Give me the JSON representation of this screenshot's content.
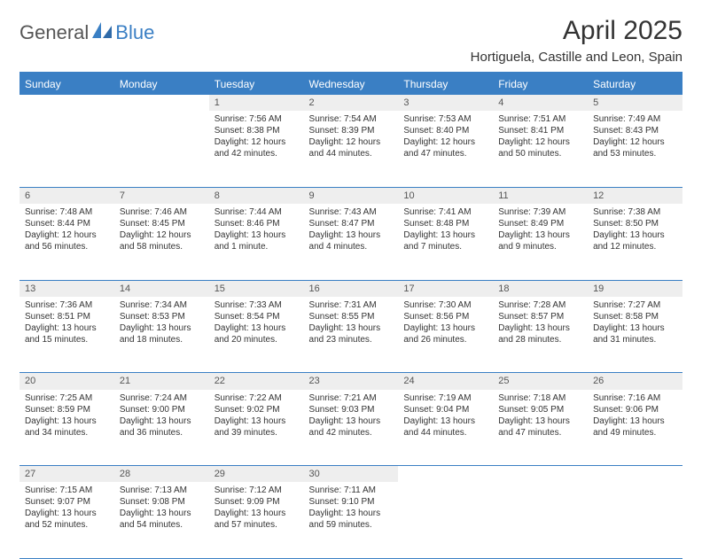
{
  "brand": {
    "part1": "General",
    "part2": "Blue",
    "accent": "#3a7fc4",
    "text_color": "#555"
  },
  "title": "April 2025",
  "location": "Hortiguela, Castille and Leon, Spain",
  "header_bg": "#3a7fc4",
  "header_fg": "#ffffff",
  "daynum_bg": "#eeeeee",
  "border_color": "#3a7fc4",
  "columns": [
    "Sunday",
    "Monday",
    "Tuesday",
    "Wednesday",
    "Thursday",
    "Friday",
    "Saturday"
  ],
  "weeks": [
    [
      null,
      null,
      {
        "n": "1",
        "sr": "7:56 AM",
        "ss": "8:38 PM",
        "dl": "12 hours and 42 minutes."
      },
      {
        "n": "2",
        "sr": "7:54 AM",
        "ss": "8:39 PM",
        "dl": "12 hours and 44 minutes."
      },
      {
        "n": "3",
        "sr": "7:53 AM",
        "ss": "8:40 PM",
        "dl": "12 hours and 47 minutes."
      },
      {
        "n": "4",
        "sr": "7:51 AM",
        "ss": "8:41 PM",
        "dl": "12 hours and 50 minutes."
      },
      {
        "n": "5",
        "sr": "7:49 AM",
        "ss": "8:43 PM",
        "dl": "12 hours and 53 minutes."
      }
    ],
    [
      {
        "n": "6",
        "sr": "7:48 AM",
        "ss": "8:44 PM",
        "dl": "12 hours and 56 minutes."
      },
      {
        "n": "7",
        "sr": "7:46 AM",
        "ss": "8:45 PM",
        "dl": "12 hours and 58 minutes."
      },
      {
        "n": "8",
        "sr": "7:44 AM",
        "ss": "8:46 PM",
        "dl": "13 hours and 1 minute."
      },
      {
        "n": "9",
        "sr": "7:43 AM",
        "ss": "8:47 PM",
        "dl": "13 hours and 4 minutes."
      },
      {
        "n": "10",
        "sr": "7:41 AM",
        "ss": "8:48 PM",
        "dl": "13 hours and 7 minutes."
      },
      {
        "n": "11",
        "sr": "7:39 AM",
        "ss": "8:49 PM",
        "dl": "13 hours and 9 minutes."
      },
      {
        "n": "12",
        "sr": "7:38 AM",
        "ss": "8:50 PM",
        "dl": "13 hours and 12 minutes."
      }
    ],
    [
      {
        "n": "13",
        "sr": "7:36 AM",
        "ss": "8:51 PM",
        "dl": "13 hours and 15 minutes."
      },
      {
        "n": "14",
        "sr": "7:34 AM",
        "ss": "8:53 PM",
        "dl": "13 hours and 18 minutes."
      },
      {
        "n": "15",
        "sr": "7:33 AM",
        "ss": "8:54 PM",
        "dl": "13 hours and 20 minutes."
      },
      {
        "n": "16",
        "sr": "7:31 AM",
        "ss": "8:55 PM",
        "dl": "13 hours and 23 minutes."
      },
      {
        "n": "17",
        "sr": "7:30 AM",
        "ss": "8:56 PM",
        "dl": "13 hours and 26 minutes."
      },
      {
        "n": "18",
        "sr": "7:28 AM",
        "ss": "8:57 PM",
        "dl": "13 hours and 28 minutes."
      },
      {
        "n": "19",
        "sr": "7:27 AM",
        "ss": "8:58 PM",
        "dl": "13 hours and 31 minutes."
      }
    ],
    [
      {
        "n": "20",
        "sr": "7:25 AM",
        "ss": "8:59 PM",
        "dl": "13 hours and 34 minutes."
      },
      {
        "n": "21",
        "sr": "7:24 AM",
        "ss": "9:00 PM",
        "dl": "13 hours and 36 minutes."
      },
      {
        "n": "22",
        "sr": "7:22 AM",
        "ss": "9:02 PM",
        "dl": "13 hours and 39 minutes."
      },
      {
        "n": "23",
        "sr": "7:21 AM",
        "ss": "9:03 PM",
        "dl": "13 hours and 42 minutes."
      },
      {
        "n": "24",
        "sr": "7:19 AM",
        "ss": "9:04 PM",
        "dl": "13 hours and 44 minutes."
      },
      {
        "n": "25",
        "sr": "7:18 AM",
        "ss": "9:05 PM",
        "dl": "13 hours and 47 minutes."
      },
      {
        "n": "26",
        "sr": "7:16 AM",
        "ss": "9:06 PM",
        "dl": "13 hours and 49 minutes."
      }
    ],
    [
      {
        "n": "27",
        "sr": "7:15 AM",
        "ss": "9:07 PM",
        "dl": "13 hours and 52 minutes."
      },
      {
        "n": "28",
        "sr": "7:13 AM",
        "ss": "9:08 PM",
        "dl": "13 hours and 54 minutes."
      },
      {
        "n": "29",
        "sr": "7:12 AM",
        "ss": "9:09 PM",
        "dl": "13 hours and 57 minutes."
      },
      {
        "n": "30",
        "sr": "7:11 AM",
        "ss": "9:10 PM",
        "dl": "13 hours and 59 minutes."
      },
      null,
      null,
      null
    ]
  ],
  "labels": {
    "sunrise": "Sunrise:",
    "sunset": "Sunset:",
    "daylight": "Daylight:"
  }
}
